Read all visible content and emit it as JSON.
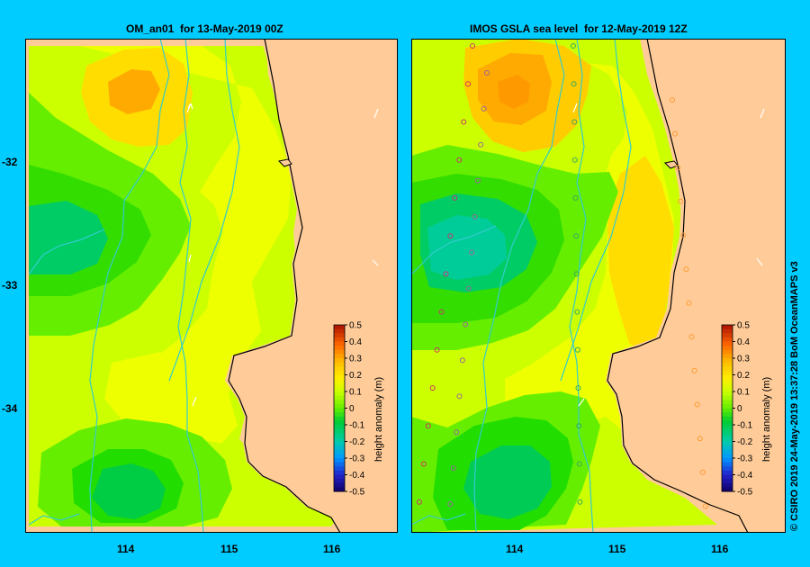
{
  "panels": [
    {
      "id": "left",
      "title": "OM_an01  for 13-May-2019 00Z"
    },
    {
      "id": "right",
      "title": "IMOS GSLA sea level  for 12-May-2019 12Z"
    }
  ],
  "y_ticks": [
    "-32",
    "-33",
    "-34"
  ],
  "x_ticks": [
    "114",
    "115",
    "116"
  ],
  "colorbar": {
    "label": "height anomaly (m)",
    "ticks": [
      "0.5",
      "0.4",
      "0.3",
      "0.2",
      "0.1",
      "0",
      "-0.1",
      "-0.2",
      "-0.3",
      "-0.4",
      "-0.5"
    ],
    "range": [
      -0.5,
      0.5
    ]
  },
  "credit": "© CSIRO 2019   24-May-2019 13:37:28 BoM OceanMAPS v3",
  "colors": {
    "background": "#00ccff",
    "land": "#ffcc99",
    "bathymetry_contour": "#33cccc"
  }
}
